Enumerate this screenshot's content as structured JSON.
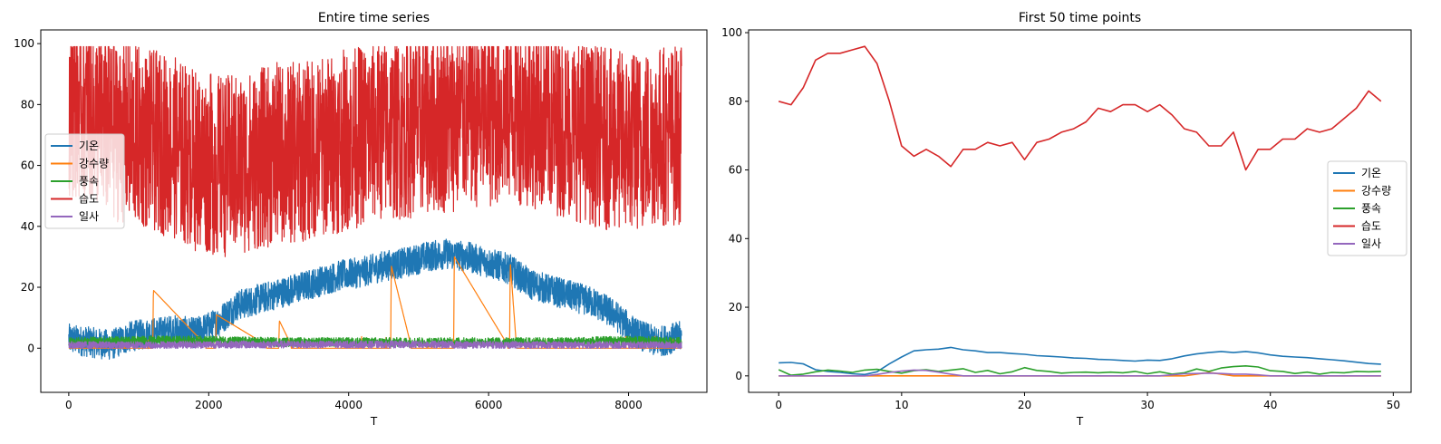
{
  "chart_data": [
    {
      "type": "line",
      "title": "Entire time series",
      "xlabel": "T",
      "ylabel": "",
      "xlim": [
        -400,
        9120
      ],
      "ylim": [
        -14.5,
        104.5
      ],
      "xticks": [
        0,
        2000,
        4000,
        6000,
        8000
      ],
      "yticks": [
        0,
        20,
        40,
        60,
        80,
        100
      ],
      "legend_position": "center-left",
      "n_points": 8760,
      "series": [
        {
          "name": "기온",
          "color": "#1f77b4",
          "x": [
            0,
            300,
            600,
            900,
            1200,
            1500,
            1800,
            2100,
            2400,
            2700,
            3000,
            3300,
            3600,
            3900,
            4200,
            4500,
            4800,
            5100,
            5400,
            5700,
            6000,
            6300,
            6600,
            6900,
            7200,
            7500,
            7800,
            8100,
            8400,
            8760
          ],
          "values": [
            3,
            2,
            1,
            4,
            5,
            6,
            5,
            8,
            14,
            16,
            18,
            20,
            22,
            24,
            25,
            27,
            28,
            30,
            31,
            30,
            28,
            26,
            21,
            19,
            17,
            15,
            11,
            5,
            2,
            4
          ]
        },
        {
          "name": "강수량",
          "color": "#ff7f0e",
          "x": [
            0,
            1000,
            1200,
            1210,
            2000,
            2100,
            2110,
            2900,
            3000,
            3010,
            3200,
            4400,
            4600,
            4610,
            4900,
            5400,
            5500,
            5510,
            6300,
            6310,
            6400,
            7500,
            8760
          ],
          "values": [
            0,
            0,
            0,
            19,
            0,
            0,
            11,
            0,
            0,
            9,
            0,
            0,
            0,
            27,
            0,
            0,
            0,
            30,
            0,
            28,
            0,
            0,
            0
          ]
        },
        {
          "name": "풍속",
          "color": "#2ca02c",
          "x": [
            0,
            1000,
            2000,
            3000,
            4000,
            5000,
            6000,
            7000,
            8000,
            8760
          ],
          "values": [
            2,
            2.5,
            2.5,
            2,
            2,
            2,
            2,
            2,
            2.5,
            2
          ]
        },
        {
          "name": "습도",
          "color": "#d62728",
          "x": [
            0,
            300,
            600,
            900,
            1200,
            1500,
            1800,
            2100,
            2400,
            2700,
            3000,
            3300,
            3600,
            3900,
            4200,
            4500,
            4800,
            5100,
            5400,
            5700,
            6000,
            6300,
            6600,
            6900,
            7200,
            7500,
            7800,
            8100,
            8400,
            8760
          ],
          "values": [
            80,
            78,
            72,
            70,
            68,
            66,
            62,
            60,
            60,
            62,
            64,
            64,
            66,
            68,
            70,
            72,
            72,
            74,
            74,
            76,
            76,
            78,
            76,
            74,
            72,
            70,
            68,
            68,
            70,
            70
          ]
        },
        {
          "name": "일사",
          "color": "#9467bd",
          "x": [
            0,
            1000,
            2000,
            3000,
            4000,
            5000,
            6000,
            7000,
            8000,
            8760
          ],
          "values": [
            1,
            1,
            1.2,
            1.2,
            1.2,
            1.2,
            1.1,
            1,
            1,
            1
          ]
        }
      ]
    },
    {
      "type": "line",
      "title": "First 50 time points",
      "xlabel": "T",
      "ylabel": "",
      "xlim": [
        -2.45,
        51.45
      ],
      "ylim": [
        -4.8,
        100.8
      ],
      "xticks": [
        0,
        10,
        20,
        30,
        40,
        50
      ],
      "yticks": [
        0,
        20,
        40,
        60,
        80,
        100
      ],
      "legend_position": "center-right",
      "series": [
        {
          "name": "기온",
          "color": "#1f77b4",
          "values": [
            3.8,
            3.9,
            3.5,
            1.8,
            1.3,
            1.0,
            0.6,
            0.4,
            1.2,
            3.5,
            5.5,
            7.3,
            7.6,
            7.8,
            8.3,
            7.6,
            7.3,
            6.8,
            6.8,
            6.5,
            6.3,
            5.9,
            5.7,
            5.5,
            5.2,
            5.1,
            4.8,
            4.7,
            4.5,
            4.3,
            4.6,
            4.5,
            5.0,
            5.8,
            6.4,
            6.8,
            7.1,
            6.8,
            7.1,
            6.7,
            6.1,
            5.7,
            5.5,
            5.3,
            5.0,
            4.7,
            4.4,
            4.0,
            3.6,
            3.4
          ]
        },
        {
          "name": "강수량",
          "color": "#ff7f0e",
          "values": [
            0,
            0,
            0,
            0,
            0,
            0,
            0,
            0,
            0,
            0,
            0,
            0,
            0,
            0,
            0,
            0,
            0,
            0,
            0,
            0,
            0,
            0,
            0,
            0,
            0,
            0,
            0,
            0,
            0,
            0,
            0,
            0,
            0,
            0,
            0.5,
            1.0,
            0.5,
            0,
            0,
            0,
            0,
            0,
            0,
            0,
            0,
            0,
            0,
            0,
            0,
            0
          ]
        },
        {
          "name": "풍속",
          "color": "#2ca02c",
          "values": [
            1.8,
            0.2,
            0.5,
            1.2,
            1.7,
            1.4,
            1.0,
            1.7,
            1.9,
            1.3,
            0.8,
            1.5,
            1.8,
            1.3,
            1.7,
            2.1,
            1.0,
            1.6,
            0.6,
            1.2,
            2.4,
            1.6,
            1.3,
            0.8,
            1.0,
            1.1,
            0.9,
            1.1,
            0.9,
            1.3,
            0.6,
            1.2,
            0.5,
            0.9,
            2.0,
            1.3,
            2.3,
            2.7,
            2.9,
            2.6,
            1.5,
            1.3,
            0.7,
            1.1,
            0.5,
            1.0,
            0.9,
            1.3,
            1.2,
            1.3
          ]
        },
        {
          "name": "습도",
          "color": "#d62728",
          "values": [
            80,
            79,
            84,
            92,
            94,
            94,
            95,
            96,
            91,
            80,
            67,
            64,
            66,
            64,
            61,
            66,
            66,
            68,
            67,
            68,
            63,
            68,
            69,
            71,
            72,
            74,
            78,
            77,
            79,
            79,
            77,
            79,
            76,
            72,
            71,
            67,
            67,
            71,
            60,
            66,
            66,
            69,
            69,
            72,
            71,
            72,
            75,
            78,
            83,
            80
          ]
        },
        {
          "name": "일사",
          "color": "#9467bd",
          "values": [
            0,
            0,
            0,
            0,
            0,
            0,
            0,
            0,
            0.4,
            1.0,
            1.4,
            1.7,
            1.6,
            1.1,
            0.5,
            0,
            0,
            0,
            0,
            0,
            0,
            0,
            0,
            0,
            0,
            0,
            0,
            0,
            0,
            0,
            0,
            0,
            0.3,
            0.6,
            0.7,
            0.8,
            0.7,
            0.5,
            0.5,
            0.3,
            0,
            0,
            0,
            0,
            0,
            0,
            0,
            0,
            0,
            0
          ]
        }
      ]
    }
  ]
}
